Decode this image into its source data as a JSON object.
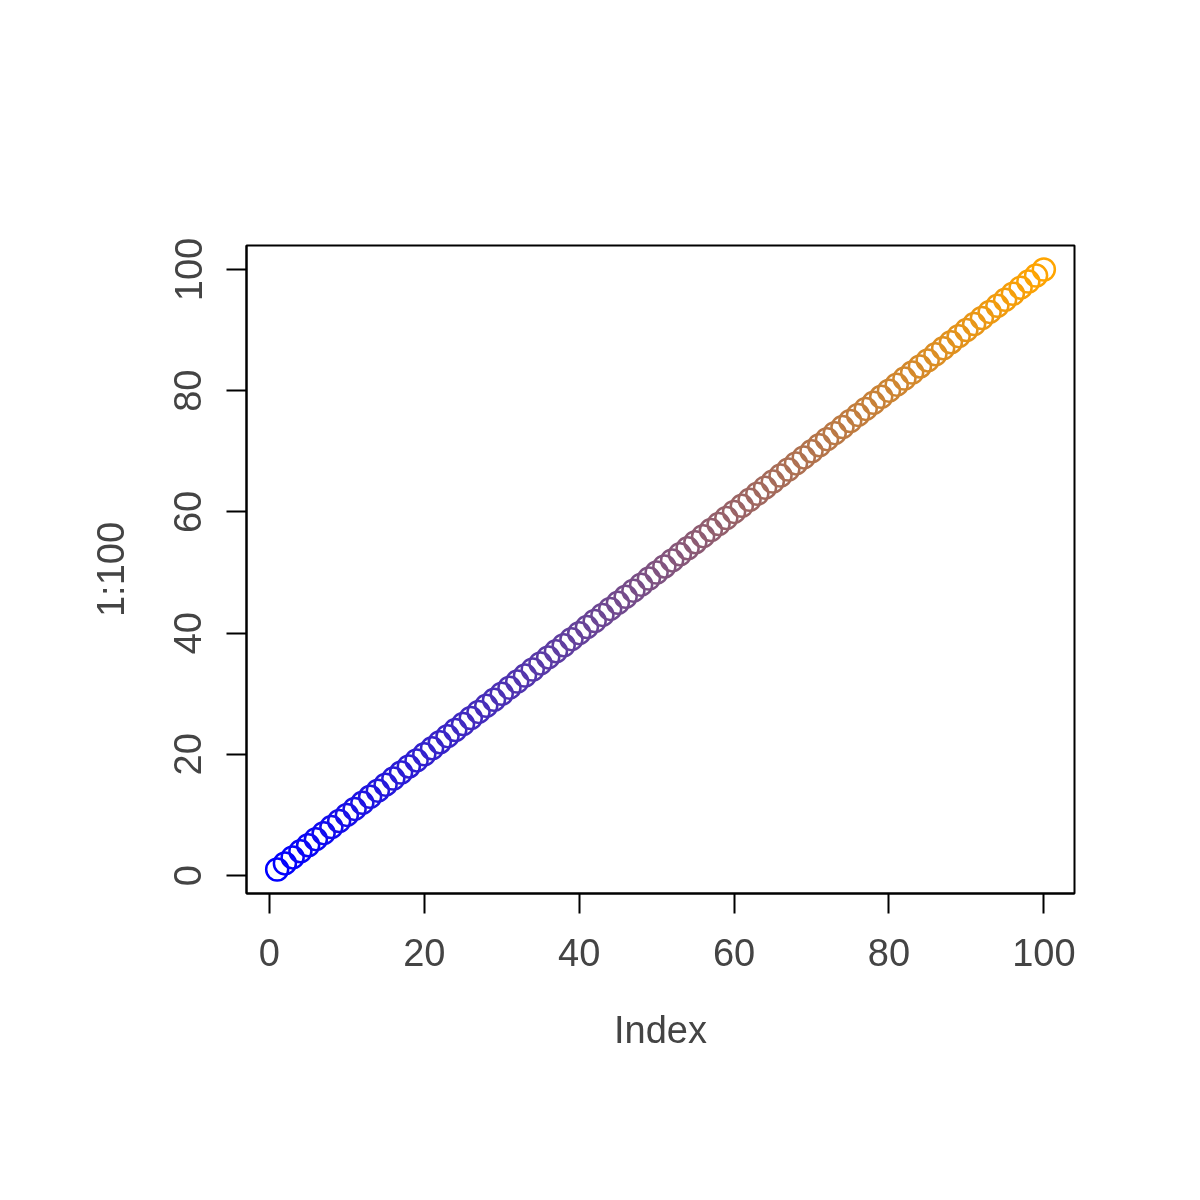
{
  "chart_data": {
    "type": "scatter",
    "xlabel": "Index",
    "ylabel": "1:100",
    "x": [
      1,
      2,
      3,
      4,
      5,
      6,
      7,
      8,
      9,
      10,
      11,
      12,
      13,
      14,
      15,
      16,
      17,
      18,
      19,
      20,
      21,
      22,
      23,
      24,
      25,
      26,
      27,
      28,
      29,
      30,
      31,
      32,
      33,
      34,
      35,
      36,
      37,
      38,
      39,
      40,
      41,
      42,
      43,
      44,
      45,
      46,
      47,
      48,
      49,
      50,
      51,
      52,
      53,
      54,
      55,
      56,
      57,
      58,
      59,
      60,
      61,
      62,
      63,
      64,
      65,
      66,
      67,
      68,
      69,
      70,
      71,
      72,
      73,
      74,
      75,
      76,
      77,
      78,
      79,
      80,
      81,
      82,
      83,
      84,
      85,
      86,
      87,
      88,
      89,
      90,
      91,
      92,
      93,
      94,
      95,
      96,
      97,
      98,
      99,
      100
    ],
    "values": [
      1,
      2,
      3,
      4,
      5,
      6,
      7,
      8,
      9,
      10,
      11,
      12,
      13,
      14,
      15,
      16,
      17,
      18,
      19,
      20,
      21,
      22,
      23,
      24,
      25,
      26,
      27,
      28,
      29,
      30,
      31,
      32,
      33,
      34,
      35,
      36,
      37,
      38,
      39,
      40,
      41,
      42,
      43,
      44,
      45,
      46,
      47,
      48,
      49,
      50,
      51,
      52,
      53,
      54,
      55,
      56,
      57,
      58,
      59,
      60,
      61,
      62,
      63,
      64,
      65,
      66,
      67,
      68,
      69,
      70,
      71,
      72,
      73,
      74,
      75,
      76,
      77,
      78,
      79,
      80,
      81,
      82,
      83,
      84,
      85,
      86,
      87,
      88,
      89,
      90,
      91,
      92,
      93,
      94,
      95,
      96,
      97,
      98,
      99,
      100
    ],
    "colors": [
      "#0000ff",
      "#0302fc",
      "#0503fa",
      "#0805f7",
      "#0a07f5",
      "#0d08f2",
      "#0f0af0",
      "#120ced",
      "#150dea",
      "#170fe8",
      "#1a11e5",
      "#1c12e3",
      "#1f14e0",
      "#2116de",
      "#2417db",
      "#2719d8",
      "#291bd6",
      "#2c1cd3",
      "#2e1ed1",
      "#3120ce",
      "#3421cb",
      "#3623c9",
      "#3925c6",
      "#3b26c4",
      "#3e28c1",
      "#402abf",
      "#432bbc",
      "#462db9",
      "#482fb7",
      "#4b30b4",
      "#4d32b2",
      "#5034af",
      "#5235ad",
      "#5537aa",
      "#5839a7",
      "#5a3aa5",
      "#5d3ca2",
      "#5f3ea0",
      "#623f9d",
      "#64419b",
      "#674398",
      "#6a4495",
      "#6c4693",
      "#6f4890",
      "#71498e",
      "#744b8b",
      "#764d89",
      "#794e86",
      "#7c5083",
      "#7e5281",
      "#81537e",
      "#83557c",
      "#865779",
      "#895876",
      "#8b5a74",
      "#8e5c71",
      "#905d6f",
      "#935f6c",
      "#95616a",
      "#986267",
      "#9b6464",
      "#9d6662",
      "#a0675f",
      "#a2695d",
      "#a56b5a",
      "#a76c58",
      "#aa6e55",
      "#ad7052",
      "#af7150",
      "#b2734d",
      "#b4754b",
      "#b77648",
      "#b97846",
      "#bc7a43",
      "#bf7b40",
      "#c17d3e",
      "#c47f3b",
      "#c68039",
      "#c98236",
      "#cb8434",
      "#ce8531",
      "#d1872e",
      "#d3892c",
      "#d68a29",
      "#d88c27",
      "#db8e24",
      "#de8f21",
      "#e0911f",
      "#e3931c",
      "#e5941a",
      "#e89617",
      "#ea9815",
      "#ed9912",
      "#f09b0f",
      "#f29d0d",
      "#f59e0a",
      "#f7a008",
      "#faa205",
      "#fca303",
      "#ffa500"
    ],
    "marker": "circle",
    "xlim": [
      -2.96,
      103.96
    ],
    "ylim": [
      -2.96,
      103.96
    ],
    "xticks": [
      0,
      20,
      40,
      60,
      80,
      100
    ],
    "yticks": [
      0,
      20,
      40,
      60,
      80,
      100
    ]
  }
}
